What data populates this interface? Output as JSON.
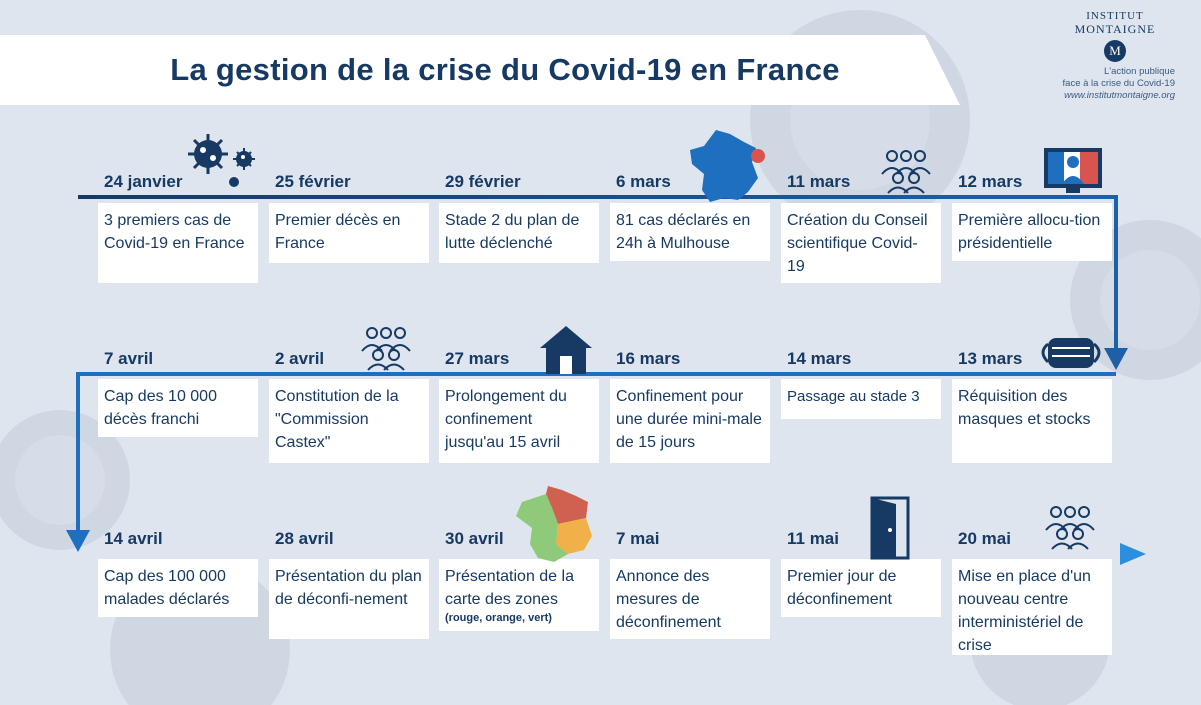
{
  "title": "La gestion de la crise du Covid-19 en France",
  "brand": {
    "name_line1": "INSTITUT",
    "name_line2": "MONTAIGNE",
    "logo_letter": "M",
    "subtitle_line1": "L'action publique",
    "subtitle_line2": "face à la crise du Covid-19",
    "url": "www.institutmontaigne.org"
  },
  "colors": {
    "navy": "#163a63",
    "blue": "#1f6fc0",
    "bright_blue": "#2a86d8",
    "background": "#dfe5ee",
    "card": "#ffffff",
    "map_red": "#d9534f",
    "zone_red": "#d06050",
    "zone_orange": "#f0b04a",
    "zone_green": "#8fc97a"
  },
  "rows": [
    {
      "events": [
        {
          "date": "24 janvier",
          "text": "3 premiers cas de Covid-19 en France",
          "icon": "virus-icon"
        },
        {
          "date": "25 février",
          "text": "Premier décès en France"
        },
        {
          "date": "29 février",
          "text": "Stade 2 du plan de lutte déclenché"
        },
        {
          "date": "6 mars",
          "text": "81 cas déclarés en 24h à Mulhouse",
          "icon": "france-map-icon"
        },
        {
          "date": "11 mars",
          "text": "Création du Conseil scientifique Covid-19",
          "icon": "group-icon"
        },
        {
          "date": "12 mars",
          "text": "Première allocu-tion présidentielle",
          "icon": "tv-address-icon"
        }
      ]
    },
    {
      "events": [
        {
          "date": "7 avril",
          "text": "Cap des 10 000 décès franchi"
        },
        {
          "date": "2 avril",
          "text": "Constitution de la \"Commission Castex\"",
          "icon": "group-icon"
        },
        {
          "date": "27 mars",
          "text": "Prolongement du confinement jusqu'au 15 avril",
          "icon": "house-icon"
        },
        {
          "date": "16 mars",
          "text": "Confinement pour une durée mini-male de 15 jours"
        },
        {
          "date": "14 mars",
          "text": "Passage au stade 3"
        },
        {
          "date": "13 mars",
          "text": "Réquisition des masques et stocks",
          "icon": "mask-icon"
        }
      ]
    },
    {
      "events": [
        {
          "date": "14 avril",
          "text": "Cap des 100 000 malades déclarés"
        },
        {
          "date": "28 avril",
          "text": "Présentation du plan de déconfi-nement"
        },
        {
          "date": "30 avril",
          "text": "Présentation de la carte des zones",
          "small": "(rouge, orange, vert)",
          "icon": "zones-map-icon"
        },
        {
          "date": "7 mai",
          "text": "Annonce des mesures de déconfinement"
        },
        {
          "date": "11 mai",
          "text": "Premier jour de déconfinement",
          "icon": "door-icon"
        },
        {
          "date": "20 mai",
          "text": "Mise en place d'un nouveau centre interministériel de crise",
          "icon": "group-icon"
        }
      ]
    }
  ]
}
